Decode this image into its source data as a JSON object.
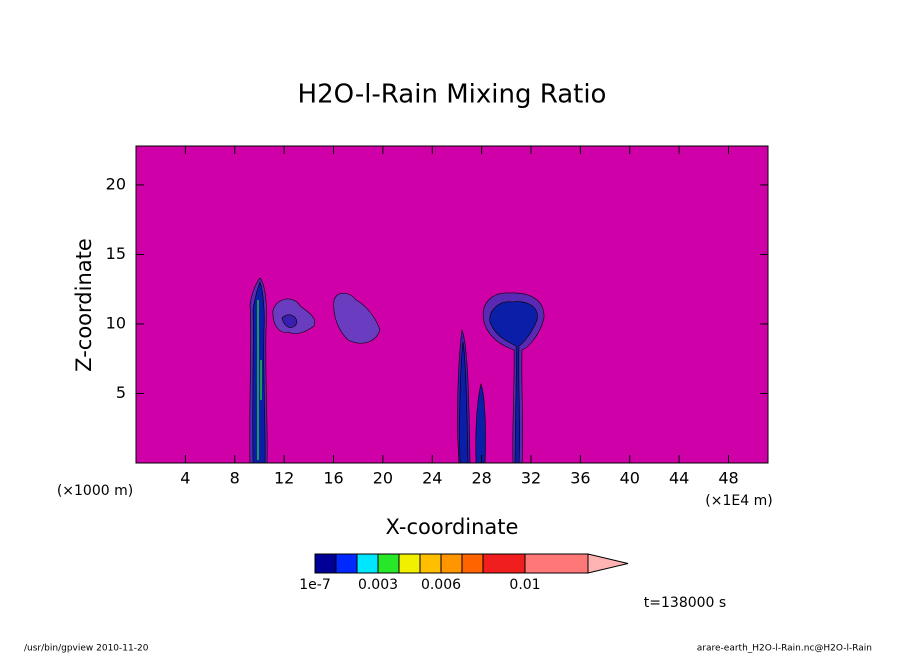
{
  "chart_data": {
    "type": "contour",
    "title": "H2O-l-Rain Mixing Ratio",
    "xlabel": "X-coordinate",
    "ylabel": "Z-coordinate",
    "xunit": "(×1E4 m)",
    "yunit": "(×1000 m)",
    "xlim": [
      0,
      51.2
    ],
    "xticks": [
      4,
      8,
      12,
      16,
      20,
      24,
      28,
      32,
      36,
      40,
      44,
      48
    ],
    "ylim": [
      0,
      22.8
    ],
    "yticks": [
      5,
      10,
      15,
      20
    ],
    "background_color": "#d000a8",
    "colorbar": {
      "levels": [
        1e-07,
        0.001,
        0.002,
        0.003,
        0.004,
        0.005,
        0.006,
        0.007,
        0.008,
        0.01,
        0.013
      ],
      "colors": [
        "#000096",
        "#0028ff",
        "#00e6ff",
        "#28e628",
        "#f0f000",
        "#ffbe00",
        "#ff9600",
        "#ff6400",
        "#f01e1e",
        "#ff7878"
      ],
      "extend_color": "#ffb4b4",
      "ticks": [
        {
          "value": 1e-07,
          "label": "1e-7"
        },
        0.003,
        0.006,
        0.01
      ]
    },
    "annotation": "t=138000 s",
    "footer_left": "/usr/bin/gpview  2010-11-20",
    "footer_right": "arare-earth_H2O-l-Rain.nc@H2O-l-Rain"
  }
}
